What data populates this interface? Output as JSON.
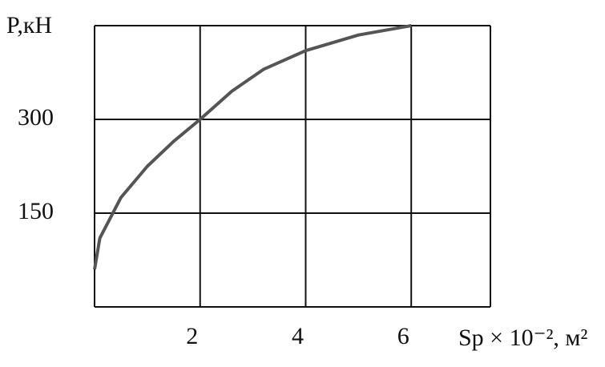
{
  "chart_data": {
    "type": "line",
    "y_label": "P,кН",
    "x_label": "Sp × 10⁻², м²",
    "x": [
      0,
      0.1,
      0.5,
      1,
      1.5,
      2,
      2.6,
      3.2,
      4,
      5,
      6
    ],
    "values": [
      60,
      110,
      175,
      225,
      265,
      300,
      345,
      380,
      410,
      435,
      450
    ],
    "color": "#555555",
    "xlim": [
      0,
      7.5
    ],
    "xticks": [
      2,
      4,
      6
    ],
    "ylim": [
      0,
      450
    ],
    "yticks": [
      150,
      300
    ],
    "grid": true
  }
}
